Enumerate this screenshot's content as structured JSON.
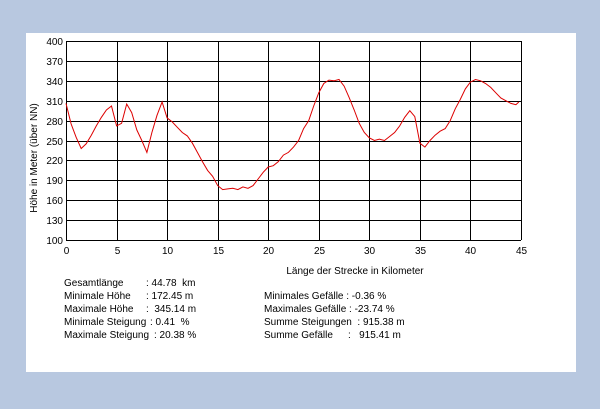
{
  "colors": {
    "background": "#b8c8e0",
    "panel": "#ffffff",
    "line": "#dd0000",
    "grid": "#000000"
  },
  "chart_data": {
    "type": "line",
    "ylabel": "Höhe in Meter (über NN)",
    "xlabel": "Länge der Strecke in Kilometer",
    "xlim": [
      0,
      45
    ],
    "ylim": [
      100,
      400
    ],
    "x_ticks": [
      0,
      5,
      10,
      15,
      20,
      25,
      30,
      35,
      40,
      45
    ],
    "y_ticks": [
      100,
      130,
      160,
      190,
      220,
      250,
      280,
      310,
      340,
      370,
      400
    ],
    "grid": true,
    "series": [
      {
        "x": [
          0,
          0.5,
          1,
          1.5,
          2,
          2.5,
          3,
          3.5,
          4,
          4.5,
          5,
          5.5,
          6,
          6.5,
          7,
          7.5,
          8,
          8.5,
          9,
          9.5,
          10,
          10.5,
          11,
          11.5,
          12,
          12.5,
          13,
          13.5,
          14,
          14.5,
          15,
          15.5,
          16,
          16.5,
          17,
          17.5,
          18,
          18.5,
          19,
          19.5,
          20,
          20.5,
          21,
          21.5,
          22,
          22.5,
          23,
          23.5,
          24,
          24.5,
          25,
          25.5,
          26,
          26.5,
          27,
          27.5,
          28,
          28.5,
          29,
          29.5,
          30,
          30.5,
          31,
          31.5,
          32,
          32.5,
          33,
          33.5,
          34,
          34.5,
          35,
          35.5,
          36,
          36.5,
          37,
          37.5,
          38,
          38.5,
          39,
          39.5,
          40,
          40.5,
          41,
          41.5,
          42,
          42.5,
          43,
          43.5,
          44,
          44.5,
          44.78
        ],
        "y": [
          306,
          275,
          255,
          238,
          245,
          258,
          272,
          285,
          296,
          302,
          272,
          276,
          305,
          292,
          266,
          250,
          232,
          262,
          288,
          308,
          284,
          278,
          270,
          262,
          257,
          246,
          232,
          218,
          205,
          196,
          182,
          176,
          177,
          178,
          176,
          180,
          178,
          182,
          192,
          202,
          210,
          212,
          218,
          228,
          232,
          240,
          250,
          268,
          280,
          302,
          322,
          336,
          341,
          340,
          342,
          332,
          315,
          296,
          276,
          262,
          254,
          250,
          252,
          250,
          256,
          262,
          272,
          285,
          295,
          286,
          246,
          240,
          250,
          258,
          264,
          268,
          280,
          298,
          312,
          328,
          338,
          342,
          340,
          336,
          330,
          322,
          314,
          310,
          306,
          304,
          308
        ]
      }
    ]
  },
  "stats": {
    "gesamtlaenge_label": "Gesamtlänge",
    "gesamtlaenge_value": ": 44.78  km",
    "min_hoehe_label": "Minimale Höhe",
    "min_hoehe_value": ": 172.45 m",
    "max_hoehe_label": "Maximale Höhe",
    "max_hoehe_value": ":  345.14 m",
    "min_steigung_label": "Minimale Steigung",
    "min_steigung_value": ": 0.41  %",
    "max_steigung_label": "Maximale Steigung",
    "max_steigung_value": ": 20.38 %",
    "min_gefaelle": "Minimales Gefälle : -0.36 %",
    "max_gefaelle": "Maximales Gefälle : -23.74 %",
    "summe_steigungen": "Summe Steigungen  : 915.38 m",
    "summe_gefaelle_label": "Summe Gefälle",
    "summe_gefaelle_value": ":   915.41 m"
  }
}
